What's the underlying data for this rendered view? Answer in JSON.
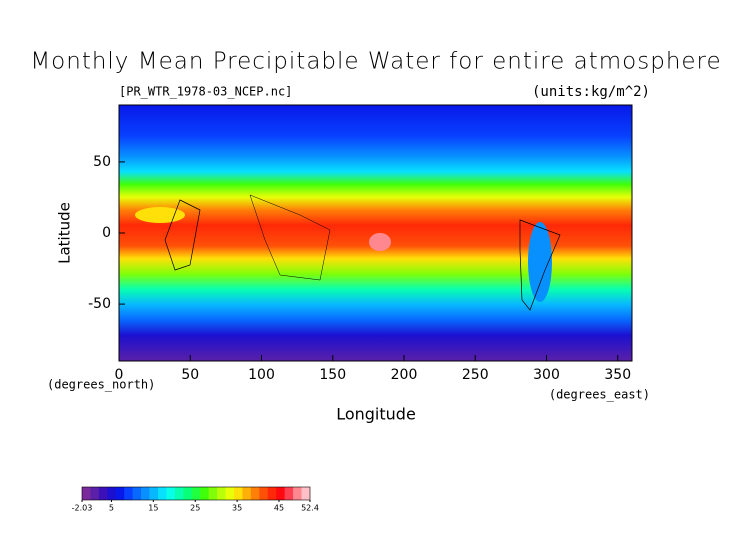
{
  "chart_data": {
    "type": "map",
    "title": "Monthly Mean Precipitable Water for entire atmosphere",
    "subtitle": "[PR_WTR_1978-03_NCEP.nc]",
    "units": "(units:kg/m^2)",
    "xlabel": "Longitude",
    "ylabel": "Latitude",
    "x_unit": "(degrees_east)",
    "y_unit": "(degrees_north)",
    "xlim": [
      0,
      360
    ],
    "ylim": [
      -90,
      90
    ],
    "xticks": [
      0,
      50,
      100,
      150,
      200,
      250,
      300,
      350
    ],
    "yticks": [
      -50,
      0,
      50
    ],
    "colorbar": {
      "lim": [
        -2.03,
        52.4
      ],
      "ticks": [
        {
          "value": -2.03,
          "label": "-2.03"
        },
        5,
        15,
        25,
        35,
        45,
        {
          "value": 52.4,
          "label": "52.4"
        }
      ],
      "colors": [
        "#7a2a9a",
        "#5a20a8",
        "#3c10b8",
        "#1c10d0",
        "#0818e8",
        "#0840ff",
        "#0868ff",
        "#0890ff",
        "#08b8ff",
        "#08e0ff",
        "#08ffe8",
        "#08ffb0",
        "#08ff78",
        "#20ff40",
        "#40ff08",
        "#80ff08",
        "#b8ff08",
        "#e8ff08",
        "#ffe008",
        "#ffb008",
        "#ff8008",
        "#ff5008",
        "#ff2808",
        "#ff0810",
        "#ff4050",
        "#ff8890",
        "#ffc0c8"
      ]
    }
  }
}
